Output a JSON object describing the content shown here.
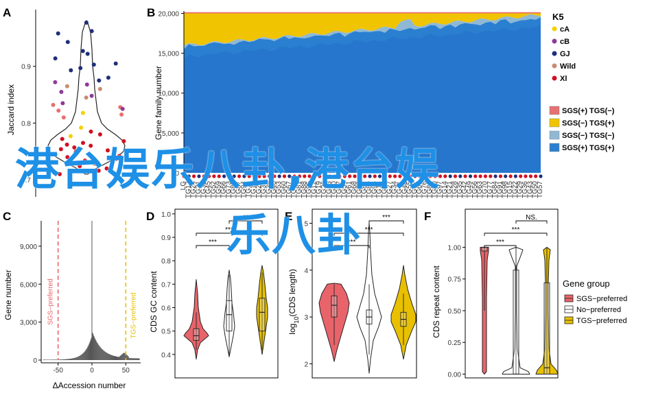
{
  "panels": {
    "A": {
      "letter": "A",
      "ylabel": "Jaccard index",
      "yticks": [
        0.7,
        0.8,
        0.9
      ],
      "ylim": [
        0.67,
        1.0
      ],
      "points": [
        {
          "g": "GJ",
          "v": 0.977
        },
        {
          "g": "GJ",
          "v": 0.962
        },
        {
          "g": "GJ",
          "v": 0.958
        },
        {
          "g": "GJ",
          "v": 0.943
        },
        {
          "g": "GJ",
          "v": 0.927
        },
        {
          "g": "GJ",
          "v": 0.922
        },
        {
          "g": "GJ",
          "v": 0.914
        },
        {
          "g": "GJ",
          "v": 0.905
        },
        {
          "g": "GJ",
          "v": 0.903
        },
        {
          "g": "GJ",
          "v": 0.897
        },
        {
          "g": "GJ",
          "v": 0.893
        },
        {
          "g": "GJ",
          "v": 0.88
        },
        {
          "g": "GJ",
          "v": 0.875
        },
        {
          "g": "cB",
          "v": 0.872
        },
        {
          "g": "cB",
          "v": 0.868
        },
        {
          "g": "Wild",
          "v": 0.865
        },
        {
          "g": "Wild",
          "v": 0.86
        },
        {
          "g": "cB",
          "v": 0.855
        },
        {
          "g": "cB",
          "v": 0.848
        },
        {
          "g": "Wild",
          "v": 0.845
        },
        {
          "g": "cB",
          "v": 0.835
        },
        {
          "g": "SGS",
          "v": 0.832
        },
        {
          "g": "SGS",
          "v": 0.828
        },
        {
          "g": "cB",
          "v": 0.825
        },
        {
          "g": "SGS",
          "v": 0.822
        },
        {
          "g": "cA",
          "v": 0.818
        },
        {
          "g": "SGS",
          "v": 0.815
        },
        {
          "g": "SGS",
          "v": 0.81
        },
        {
          "g": "cA",
          "v": 0.792
        },
        {
          "g": "Xl",
          "v": 0.785
        },
        {
          "g": "Xl",
          "v": 0.78
        },
        {
          "g": "cA",
          "v": 0.777
        },
        {
          "g": "Xl",
          "v": 0.772
        },
        {
          "g": "Xl",
          "v": 0.768
        },
        {
          "g": "Xl",
          "v": 0.765
        },
        {
          "g": "Xl",
          "v": 0.762
        },
        {
          "g": "Xl",
          "v": 0.76
        },
        {
          "g": "Xl",
          "v": 0.757
        },
        {
          "g": "Xl",
          "v": 0.754
        },
        {
          "g": "Xl",
          "v": 0.752
        },
        {
          "g": "Xl",
          "v": 0.75
        },
        {
          "g": "Xl",
          "v": 0.748
        },
        {
          "g": "Xl",
          "v": 0.745
        },
        {
          "g": "Xl",
          "v": 0.742
        },
        {
          "g": "Xl",
          "v": 0.74
        },
        {
          "g": "Xl",
          "v": 0.737
        },
        {
          "g": "Xl",
          "v": 0.734
        },
        {
          "g": "Xl",
          "v": 0.73
        },
        {
          "g": "Wild",
          "v": 0.728
        },
        {
          "g": "Xl",
          "v": 0.724
        },
        {
          "g": "Xl",
          "v": 0.72
        },
        {
          "g": "Xl",
          "v": 0.716
        },
        {
          "g": "Xl",
          "v": 0.71
        }
      ]
    },
    "B": {
      "letter": "B",
      "ylabel": "Gene family number",
      "yticks": [
        0,
        5000,
        10000,
        15000,
        20000
      ],
      "ytick_labels": [
        "0",
        "5,000",
        "10,000",
        "15,000",
        "20,000"
      ],
      "ylim": [
        0,
        20300
      ],
      "total": 20000,
      "legend_title": "K5",
      "legend_k5": [
        {
          "name": "cA",
          "color": "#f5d000"
        },
        {
          "name": "cB",
          "color": "#8e3a99"
        },
        {
          "name": "GJ",
          "color": "#1f2f7a"
        },
        {
          "name": "Wild",
          "color": "#c98c6f"
        },
        {
          "name": "Xl",
          "color": "#d01020"
        }
      ],
      "legend_fill": [
        {
          "name": "SGS(+) TGS(−)",
          "color": "#e87070"
        },
        {
          "name": "SGS(−) TGS(+)",
          "color": "#f0c400"
        },
        {
          "name": "SGS(−) TGS(−)",
          "color": "#8fb8d5"
        },
        {
          "name": "SGS(+) TGS(+)",
          "color": "#2a7fd0"
        }
      ],
      "n_accessions": 72,
      "core_start": 14600,
      "core_end": 18300,
      "mid_start": 16000,
      "mid_end": 19800
    },
    "C": {
      "letter": "C",
      "ylabel": "Gene number",
      "xlabel": "ΔAccession number",
      "yticks": [
        0,
        3000,
        6000,
        9000
      ],
      "ytick_labels": [
        "0",
        "3,000",
        "6,000",
        "9,000"
      ],
      "xticks": [
        -50,
        0,
        50
      ],
      "xlim": [
        -75,
        72
      ],
      "ylim": [
        0,
        11000
      ],
      "sgs_label": "SGS−preferred",
      "tgs_label": "TGS−preferred",
      "sgs_cut": -50,
      "tgs_cut": 50,
      "peak": 11000
    },
    "D": {
      "letter": "D",
      "ylabel": "CDS GC content",
      "yticks": [
        0.4,
        0.5,
        0.6,
        0.7,
        0.8,
        0.9,
        1.0
      ],
      "ylim": [
        0.3,
        1.02
      ],
      "sig": [
        "***",
        "***",
        "**"
      ]
    },
    "E": {
      "letter": "E",
      "ylabel_main": "log",
      "ylabel_sub": "10",
      "ylabel_rest": "(CDS length)",
      "yticks": [
        2,
        3,
        4,
        5
      ],
      "ylim": [
        1.7,
        5.3
      ],
      "sig": [
        "***",
        "***",
        "***"
      ]
    },
    "F": {
      "letter": "F",
      "ylabel": "CDS repeat content",
      "yticks": [
        0.0,
        0.25,
        0.5,
        0.75,
        1.0
      ],
      "ytick_labels": [
        "0.00",
        "0.25",
        "0.50",
        "0.75",
        "1.00"
      ],
      "ylim": [
        -0.03,
        1.3
      ],
      "sig": [
        "***",
        "***",
        "NS."
      ],
      "legend_title": "Gene group",
      "legend": [
        {
          "name": "SGS−preferred",
          "color": "#e8646a"
        },
        {
          "name": "No−preferred",
          "color": "#ffffff"
        },
        {
          "name": "TGS−preferred",
          "color": "#e8c000"
        }
      ]
    }
  },
  "accession_ticks": [
    "LG",
    "TG",
    "TG",
    "TG",
    "TG",
    "TG",
    "TG",
    "TG",
    "TG",
    "TG",
    "TG",
    "TG",
    "TG",
    "TG",
    "TG",
    "TG",
    "TG",
    "TG",
    "TG",
    "TG",
    "TG",
    "TG",
    "TG",
    "TG",
    "TG",
    "TG",
    "TG",
    "TG",
    "TG",
    "TG",
    "TG",
    "TG",
    "TG",
    "TG",
    "TG",
    "TG",
    "TG",
    "TG",
    "TG",
    "TG",
    "TG",
    "TG",
    "TG",
    "TG",
    "TG",
    "TG",
    "TG",
    "TG",
    "TG",
    "TG",
    "TG",
    "TG",
    "TG",
    "TG",
    "TG",
    "TG",
    "TG",
    "TG",
    "TG",
    "TG",
    "TG",
    "TG",
    "TG",
    "TG",
    "TG",
    "TG",
    "TG",
    "TG",
    "TG",
    "TG",
    "TG",
    "TG"
  ],
  "watermark": {
    "line1": "港台娱乐八卦,港台娱",
    "line2": "乐八卦"
  }
}
